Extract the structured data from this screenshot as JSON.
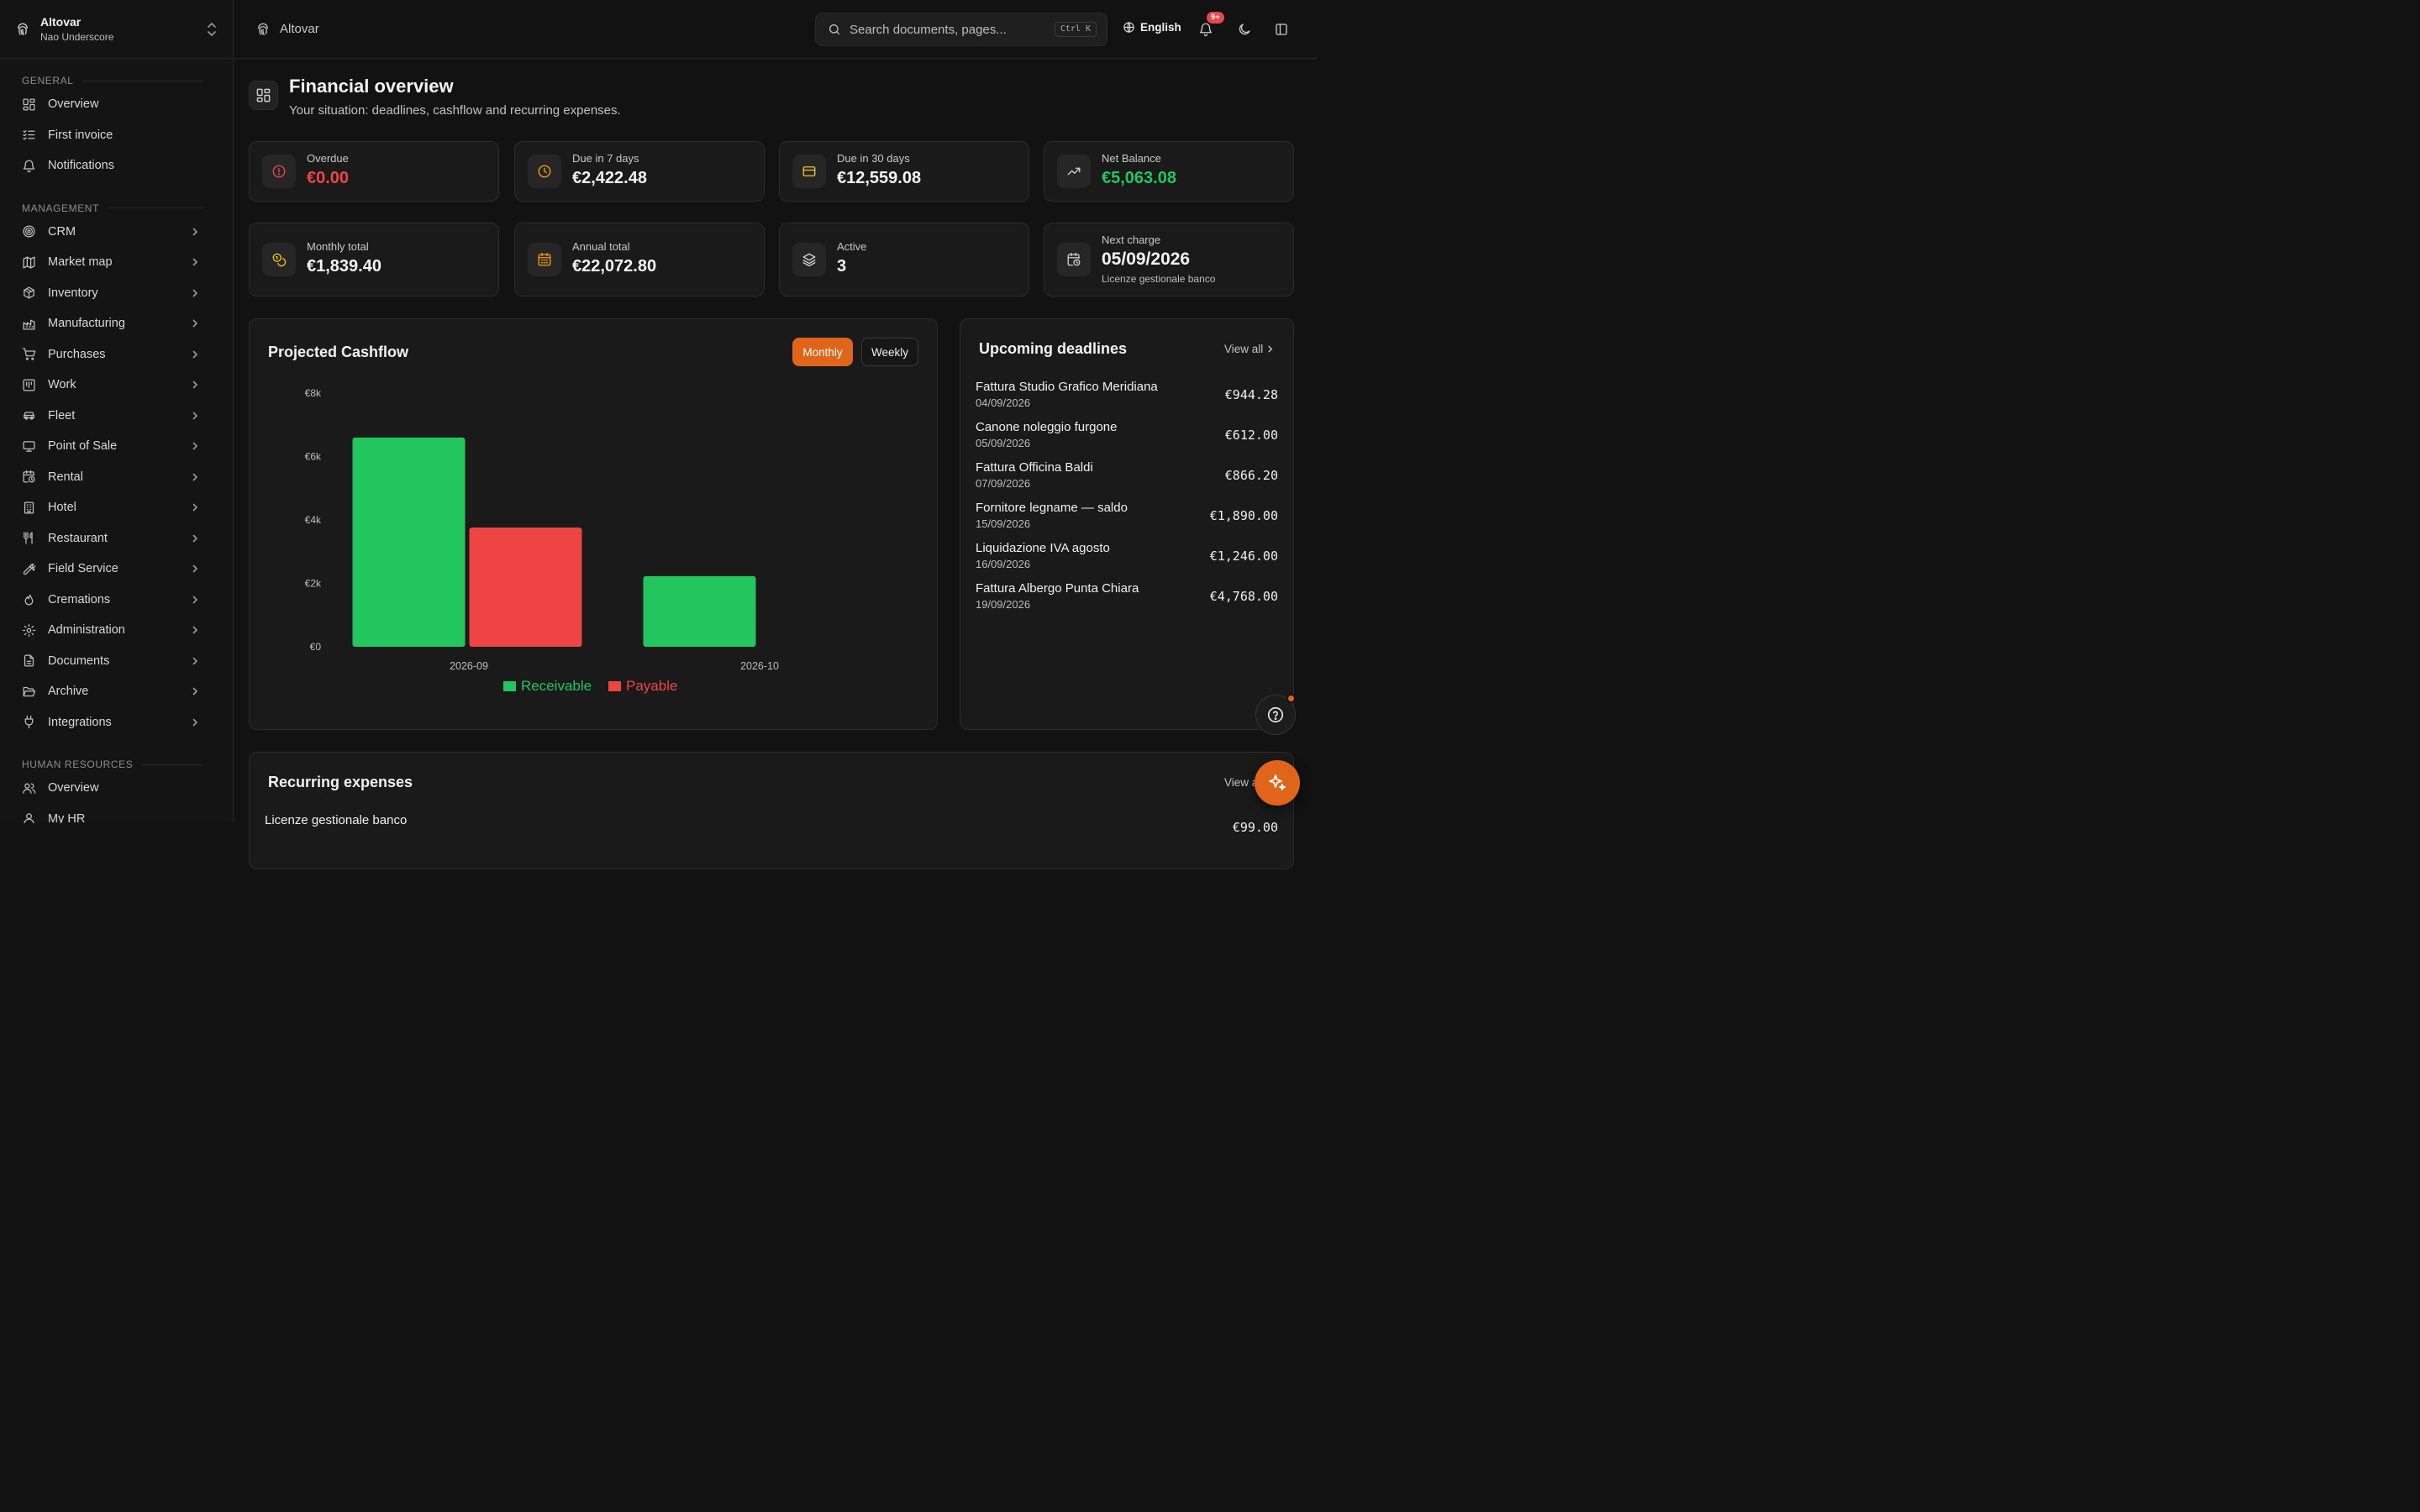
{
  "sidebar": {
    "org_name": "Altovar",
    "org_user": "Nao Underscore",
    "sections": [
      {
        "title": "GENERAL",
        "items": [
          {
            "label": "Overview",
            "icon": "dashboard-icon",
            "chevron": false
          },
          {
            "label": "First invoice",
            "icon": "checklist-icon",
            "chevron": false
          },
          {
            "label": "Notifications",
            "icon": "bell-icon",
            "chevron": false
          }
        ]
      },
      {
        "title": "MANAGEMENT",
        "items": [
          {
            "label": "CRM",
            "icon": "target-icon",
            "chevron": true
          },
          {
            "label": "Market map",
            "icon": "map-icon",
            "chevron": true
          },
          {
            "label": "Inventory",
            "icon": "package-icon",
            "chevron": true
          },
          {
            "label": "Manufacturing",
            "icon": "factory-icon",
            "chevron": true
          },
          {
            "label": "Purchases",
            "icon": "cart-icon",
            "chevron": true
          },
          {
            "label": "Work",
            "icon": "kanban-icon",
            "chevron": true
          },
          {
            "label": "Fleet",
            "icon": "car-icon",
            "chevron": true
          },
          {
            "label": "Point of Sale",
            "icon": "monitor-icon",
            "chevron": true
          },
          {
            "label": "Rental",
            "icon": "calendar-clock-icon",
            "chevron": true
          },
          {
            "label": "Hotel",
            "icon": "building-icon",
            "chevron": true
          },
          {
            "label": "Restaurant",
            "icon": "utensils-icon",
            "chevron": true
          },
          {
            "label": "Field Service",
            "icon": "wrench-icon",
            "chevron": true
          },
          {
            "label": "Cremations",
            "icon": "flame-icon",
            "chevron": true
          },
          {
            "label": "Administration",
            "icon": "gear-icon",
            "chevron": true
          },
          {
            "label": "Documents",
            "icon": "file-icon",
            "chevron": true
          },
          {
            "label": "Archive",
            "icon": "folder-open-icon",
            "chevron": true
          },
          {
            "label": "Integrations",
            "icon": "plug-icon",
            "chevron": true
          }
        ]
      },
      {
        "title": "HUMAN RESOURCES",
        "items": [
          {
            "label": "Overview",
            "icon": "users-icon",
            "chevron": false
          },
          {
            "label": "My HR",
            "icon": "user-icon",
            "chevron": false
          }
        ]
      }
    ]
  },
  "topbar": {
    "brand": "Altovar",
    "search_placeholder": "Search documents, pages...",
    "search_shortcut": "Ctrl K",
    "language": "English",
    "notifications_badge": "9+"
  },
  "page": {
    "title": "Financial overview",
    "subtitle": "Your situation: deadlines, cashflow and recurring expenses."
  },
  "stats": [
    {
      "label": "Overdue",
      "value": "€0.00",
      "icon": "alert-circle-icon",
      "value_color": "#ef4444",
      "icon_color": "#ef4444"
    },
    {
      "label": "Due in 7 days",
      "value": "€2,422.48",
      "icon": "clock-icon",
      "value_color": "#f4f4f4",
      "icon_color": "#f59e0b"
    },
    {
      "label": "Due in 30 days",
      "value": "€12,559.08",
      "icon": "credit-card-icon",
      "value_color": "#f4f4f4",
      "icon_color": "#f5c518"
    },
    {
      "label": "Net Balance",
      "value": "€5,063.08",
      "icon": "trending-up-icon",
      "value_color": "#22c55e",
      "icon_color": "#cfcfcf"
    },
    {
      "label": "Monthly total",
      "value": "€1,839.40",
      "icon": "coins-icon",
      "value_color": "#f4f4f4",
      "icon_color": "#f5c518"
    },
    {
      "label": "Annual total",
      "value": "€22,072.80",
      "icon": "calendar-icon",
      "value_color": "#f4f4f4",
      "icon_color": "#f59e0b"
    },
    {
      "label": "Active",
      "value": "3",
      "icon": "layers-icon",
      "value_color": "#f4f4f4",
      "icon_color": "#cfcfcf"
    },
    {
      "label": "Next charge",
      "value": "05/09/2026",
      "sub": "Licenze gestionale banco",
      "icon": "calendar-clock-icon",
      "value_color": "#f4f4f4",
      "icon_color": "#cfcfcf"
    }
  ],
  "cashflow": {
    "title": "Projected Cashflow",
    "toggle": {
      "monthly": "Monthly",
      "weekly": "Weekly",
      "selected": "Monthly"
    }
  },
  "chart_data": {
    "type": "bar",
    "categories": [
      "2026-09",
      "2026-10"
    ],
    "series": [
      {
        "name": "Receivable",
        "color": "#22c55e",
        "values": [
          6600,
          2230
        ]
      },
      {
        "name": "Payable",
        "color": "#ef4444",
        "values": [
          3760,
          0
        ]
      }
    ],
    "yticks": [
      "€0",
      "€2k",
      "€4k",
      "€6k",
      "€8k"
    ],
    "ylim": [
      0,
      8000
    ],
    "legend": "bottom-center",
    "grid": false
  },
  "deadlines": {
    "title": "Upcoming deadlines",
    "view_all": "View all",
    "items": [
      {
        "name": "Fattura Studio Grafico Meridiana",
        "date": "04/09/2026",
        "amount": "€944.28"
      },
      {
        "name": "Canone noleggio furgone",
        "date": "05/09/2026",
        "amount": "€612.00"
      },
      {
        "name": "Fattura Officina Baldi",
        "date": "07/09/2026",
        "amount": "€866.20"
      },
      {
        "name": "Fornitore legname — saldo",
        "date": "15/09/2026",
        "amount": "€1,890.00"
      },
      {
        "name": "Liquidazione IVA agosto",
        "date": "16/09/2026",
        "amount": "€1,246.00"
      },
      {
        "name": "Fattura Albergo Punta Chiara",
        "date": "19/09/2026",
        "amount": "€4,768.00"
      }
    ]
  },
  "recurring": {
    "title": "Recurring expenses",
    "view_all": "View all",
    "first_row_name": "Licenze gestionale banco",
    "first_row_amount": "€99.00"
  }
}
